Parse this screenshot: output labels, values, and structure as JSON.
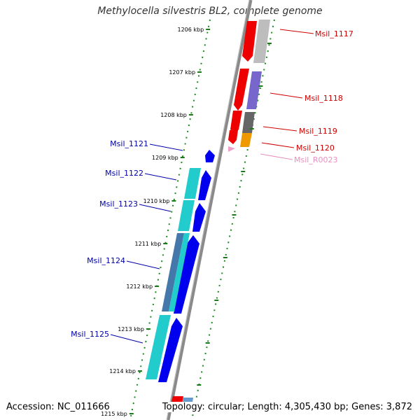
{
  "title": "Methylocella silvestris BL2, complete genome",
  "accession": "Accession: NC_011666",
  "summary": "Topology: circular; Length: 4,305,430 bp; Genes: 3,872",
  "ticks": [
    "1206 kbp",
    "1207 kbp",
    "1208 kbp",
    "1209 kbp",
    "1210 kbp",
    "1211 kbp",
    "1212 kbp",
    "1213 kbp",
    "1214 kbp",
    "1215 kbp"
  ],
  "genes": [
    {
      "name": "Msil_1117",
      "strand": "forward",
      "color": "#dd0000"
    },
    {
      "name": "Msil_1118",
      "strand": "forward",
      "color": "#dd0000"
    },
    {
      "name": "Msil_1119",
      "strand": "forward",
      "color": "#dd0000"
    },
    {
      "name": "Msil_1120",
      "strand": "forward",
      "color": "#dd0000"
    },
    {
      "name": "Msil_R0023",
      "strand": "forward",
      "color": "#f0a0c8"
    },
    {
      "name": "Msil_1121",
      "strand": "reverse",
      "color": "#0000cc"
    },
    {
      "name": "Msil_1122",
      "strand": "reverse",
      "color": "#0000cc"
    },
    {
      "name": "Msil_1123",
      "strand": "reverse",
      "color": "#0000cc"
    },
    {
      "name": "Msil_1124",
      "strand": "reverse",
      "color": "#0000cc"
    },
    {
      "name": "Msil_1125",
      "strand": "reverse",
      "color": "#0000cc"
    }
  ],
  "colors": {
    "backbone": "#888888",
    "tick": "#1a7a1a",
    "forward_gene": "#ee0000",
    "reverse_gene": "#0000ee",
    "forward_label": "#cc0000",
    "reverse_label": "#0000aa",
    "rna_label": "#e890c0",
    "cog_cyan": "#22cccc",
    "cog_purple": "#7766cc",
    "cog_gray": "#bbbbbb",
    "cog_darkgray": "#666666",
    "cog_orange": "#ee9900",
    "cog_steelblue": "#4477aa"
  }
}
